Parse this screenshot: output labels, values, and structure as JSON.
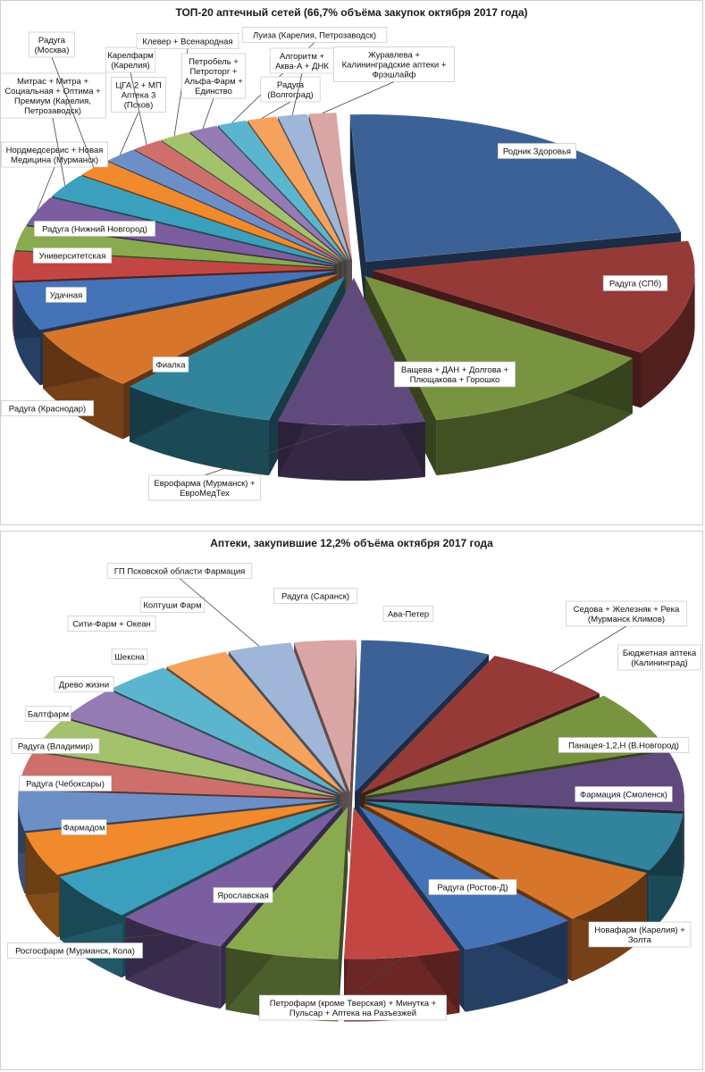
{
  "chart_data": [
    {
      "type": "pie",
      "title": "ТОП-20 аптечный сетей (66,7% объёма закупок октября 2017 года)",
      "slices": [
        {
          "label": "Родник Здоровья",
          "value": 21.5,
          "color": "#3c6196"
        },
        {
          "label": "Радуга (СПб)",
          "value": 12.0,
          "color": "#953a37"
        },
        {
          "label": "Ващева + ДАН + Долгова + Плющакова + Горошко",
          "value": 11.5,
          "color": "#789441"
        },
        {
          "label": "Еврофарма (Мурманск) + ЕвроМедТех",
          "value": 7.0,
          "color": "#60497d"
        },
        {
          "label": "Фиалка",
          "value": 7.5,
          "color": "#31849b"
        },
        {
          "label": "Радуга (Краснодар)",
          "value": 6.5,
          "color": "#d7762b"
        },
        {
          "label": "Удачная",
          "value": 5.0,
          "color": "#4473b8"
        },
        {
          "label": "Университетская",
          "value": 3.0,
          "color": "#c44643"
        },
        {
          "label": "Радуга (Нижний Новгород)",
          "value": 2.5,
          "color": "#8aaa4f"
        },
        {
          "label": "Нордмедсервис + Новая Медицина (Мурманск)",
          "value": 3.0,
          "color": "#7a5ea0"
        },
        {
          "label": "Митрас + Митра + Социальная + Оптима + Премиум (Карелия, Петрозаводск)",
          "value": 2.5,
          "color": "#3aa0bd"
        },
        {
          "label": "Радуга (Москва)",
          "value": 1.8,
          "color": "#f08a2c"
        },
        {
          "label": "ЦГА 2 + МП Аптека 3 (Псков)",
          "value": 1.6,
          "color": "#6d8fc8"
        },
        {
          "label": "Карелфарм (Карелия)",
          "value": 1.5,
          "color": "#cf6f6c"
        },
        {
          "label": "Клевер + Всенародная",
          "value": 1.5,
          "color": "#a4c26b"
        },
        {
          "label": "Петробель + Петроторг + Альфа-Фарм + Единство",
          "value": 1.4,
          "color": "#957bb4"
        },
        {
          "label": "Луиза (Карелия, Петрозаводск)",
          "value": 1.4,
          "color": "#5cb5cf"
        },
        {
          "label": "Радуга (Волгоград)",
          "value": 1.4,
          "color": "#f5a35c"
        },
        {
          "label": "Алгоритм + Аква-А + ДНК",
          "value": 1.4,
          "color": "#9fb6d9"
        },
        {
          "label": "Журавлева + Калининградские аптеки + Фрэшлайф",
          "value": 1.3,
          "color": "#d9a6a5"
        }
      ]
    },
    {
      "type": "pie",
      "title": "Аптеки, закупившие 12,2% объёма октября 2017 года",
      "slices": [
        {
          "label": "Ава-Петер",
          "value": 6.5,
          "color": "#3c6196"
        },
        {
          "label": "Седова + Железняк + Река (Мурманск Климов)",
          "value": 6.5,
          "color": "#953a37"
        },
        {
          "label": "Бюджетная аптека (Калининград)",
          "value": 6.3,
          "color": "#789441"
        },
        {
          "label": "Панацея-1,2,Н (В.Новгород)",
          "value": 6.2,
          "color": "#60497d"
        },
        {
          "label": "Фармация (Смоленск)",
          "value": 6.1,
          "color": "#31849b"
        },
        {
          "label": "Новафарм (Карелия) + Золта",
          "value": 6.0,
          "color": "#d7762b"
        },
        {
          "label": "Радуга (Ростов-Д)",
          "value": 5.9,
          "color": "#4473b8"
        },
        {
          "label": "Петрофарм (кроме Тверская) + Минутка + Пульсар + Аптека на Разъезжей",
          "value": 5.8,
          "color": "#c44643"
        },
        {
          "label": "Ярославская",
          "value": 5.7,
          "color": "#8aaa4f"
        },
        {
          "label": "Росгосфарм (Мурманск, Кола)",
          "value": 5.6,
          "color": "#7a5ea0"
        },
        {
          "label": "Фармадом",
          "value": 5.0,
          "color": "#3aa0bd"
        },
        {
          "label": "Радуга (Чебоксары)",
          "value": 4.6,
          "color": "#f08a2c"
        },
        {
          "label": "Радуга (Владимир)",
          "value": 4.2,
          "color": "#6d8fc8"
        },
        {
          "label": "Балтфарм",
          "value": 3.8,
          "color": "#cf6f6c"
        },
        {
          "label": "Древо жизни",
          "value": 3.6,
          "color": "#a4c26b"
        },
        {
          "label": "Шексна",
          "value": 3.5,
          "color": "#957bb4"
        },
        {
          "label": "Сити-Фарм + Океан",
          "value": 3.4,
          "color": "#5cb5cf"
        },
        {
          "label": "Колтуши Фарм",
          "value": 3.3,
          "color": "#f5a35c"
        },
        {
          "label": "ГП Псковской области Фармация",
          "value": 3.2,
          "color": "#9fb6d9"
        },
        {
          "label": "Радуга (Саранск)",
          "value": 3.1,
          "color": "#d9a6a5"
        }
      ]
    }
  ]
}
